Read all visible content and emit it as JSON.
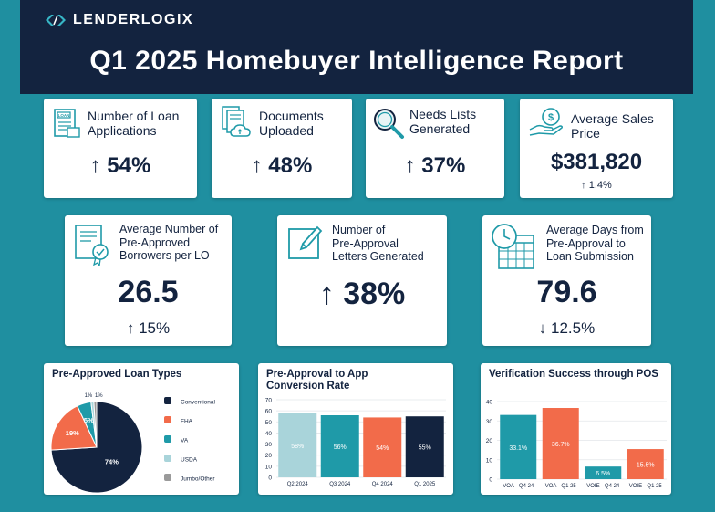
{
  "header": {
    "logo_text": "LENDERLOGIX",
    "title": "Q1 2025 Homebuyer Intelligence Report"
  },
  "kpis_row1": [
    {
      "label_lines": [
        "Number of Loan",
        "Applications"
      ],
      "value": "↑ 54%",
      "icon": "loan-document-icon"
    },
    {
      "label_lines": [
        "Documents",
        "Uploaded"
      ],
      "value": "↑ 48%",
      "icon": "documents-upload-icon"
    },
    {
      "label_lines": [
        "Needs Lists",
        "Generated"
      ],
      "value": "↑ 37%",
      "icon": "magnifier-icon"
    },
    {
      "label_lines": [
        "Average Sales",
        "Price"
      ],
      "value": "$381,820",
      "change": "↑ 1.4%",
      "icon": "money-hand-icon"
    }
  ],
  "kpis_row2": [
    {
      "label_lines": [
        "Average Number of",
        "Pre-Approved",
        "Borrowers per LO"
      ],
      "value": "26.5",
      "change": "↑ 15%",
      "icon": "certificate-icon"
    },
    {
      "label_lines": [
        "Number of",
        "Pre-Approval",
        "Letters Generated"
      ],
      "value": "↑ 38%",
      "icon": "letter-pen-icon"
    },
    {
      "label_lines": [
        "Average Days from",
        "Pre-Approval to",
        "Loan Submission"
      ],
      "value": "79.6",
      "change": "↓ 12.5%",
      "icon": "calendar-clock-icon"
    }
  ],
  "colors": {
    "navy": "#13233f",
    "orange": "#f26b4a",
    "teal": "#1f9aa8",
    "light_teal": "#a9d4da",
    "gray": "#9a9a9a",
    "background": "#1f8fa0"
  },
  "chart_data": [
    {
      "type": "pie",
      "title": "Pre-Approved Loan Types",
      "slices": [
        {
          "name": "Conventional",
          "value": 74,
          "label": "74%",
          "color": "#13233f"
        },
        {
          "name": "FHA",
          "value": 19,
          "label": "19%",
          "color": "#f26b4a"
        },
        {
          "name": "VA",
          "value": 5,
          "label": "5%",
          "color": "#1f9aa8"
        },
        {
          "name": "USDA",
          "value": 1,
          "label": "1%",
          "color": "#a9d4da"
        },
        {
          "name": "Jumbo/Other",
          "value": 1,
          "label": "1%",
          "color": "#9a9a9a"
        }
      ],
      "legend": "right"
    },
    {
      "type": "bar",
      "title": "Pre-Approval to App Conversion Rate",
      "categories": [
        "Q2 2024",
        "Q3 2024",
        "Q4 2024",
        "Q1 2025"
      ],
      "values": [
        58,
        56,
        54,
        55
      ],
      "labels": [
        "58%",
        "56%",
        "54%",
        "55%"
      ],
      "colors": [
        "#a9d4da",
        "#1f9aa8",
        "#f26b4a",
        "#13233f"
      ],
      "ylim": [
        0,
        70
      ],
      "yticks": [
        0,
        10,
        20,
        30,
        40,
        50,
        60,
        70
      ],
      "grid": true
    },
    {
      "type": "bar",
      "title": "Verification Success through POS",
      "categories": [
        "VOA - Q4 24",
        "VOA - Q1 25",
        "VOIE - Q4 24",
        "VOIE - Q1 25"
      ],
      "values": [
        33.1,
        36.7,
        6.5,
        15.5
      ],
      "labels": [
        "33.1%",
        "36.7%",
        "6.5%",
        "15.5%"
      ],
      "colors": [
        "#1f9aa8",
        "#f26b4a",
        "#1f9aa8",
        "#f26b4a"
      ],
      "ylim": [
        0,
        40
      ],
      "yticks": [
        0,
        10,
        20,
        30,
        40
      ],
      "grid": true
    }
  ]
}
